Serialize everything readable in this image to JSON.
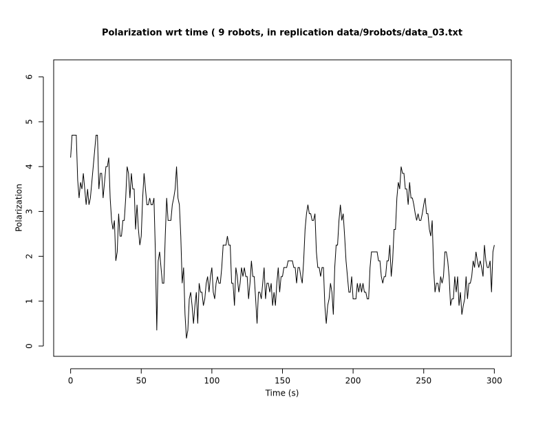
{
  "chart_data": {
    "type": "line",
    "title": "Polarization wrt time ( 9 robots, in replication  data/9robots/data_03.txt",
    "xlabel": "Time (s)",
    "ylabel": "Polarization",
    "color": "#000000",
    "xlim": [
      -12,
      312
    ],
    "ylim": [
      -0.23,
      6.38
    ],
    "xticks": [
      0,
      50,
      100,
      150,
      200,
      250,
      300
    ],
    "yticks": [
      0,
      1,
      2,
      3,
      4,
      5,
      6
    ],
    "x": [
      0,
      1,
      2,
      3,
      4,
      5,
      6,
      7,
      8,
      9,
      10,
      11,
      12,
      13,
      14,
      15,
      16,
      17,
      18,
      19,
      20,
      21,
      22,
      23,
      24,
      25,
      26,
      27,
      28,
      29,
      30,
      31,
      32,
      33,
      34,
      35,
      36,
      37,
      38,
      39,
      40,
      41,
      42,
      43,
      44,
      45,
      46,
      47,
      48,
      49,
      50,
      51,
      52,
      53,
      54,
      55,
      56,
      57,
      58,
      59,
      60,
      61,
      62,
      63,
      64,
      65,
      66,
      67,
      68,
      69,
      70,
      71,
      72,
      73,
      74,
      75,
      76,
      77,
      78,
      79,
      80,
      81,
      82,
      83,
      84,
      85,
      86,
      87,
      88,
      89,
      90,
      91,
      92,
      93,
      94,
      95,
      96,
      97,
      98,
      99,
      100,
      101,
      102,
      103,
      104,
      105,
      106,
      107,
      108,
      109,
      110,
      111,
      112,
      113,
      114,
      115,
      116,
      117,
      118,
      119,
      120,
      121,
      122,
      123,
      124,
      125,
      126,
      127,
      128,
      129,
      130,
      131,
      132,
      133,
      134,
      135,
      136,
      137,
      138,
      139,
      140,
      141,
      142,
      143,
      144,
      145,
      146,
      147,
      148,
      149,
      150,
      151,
      152,
      153,
      154,
      155,
      156,
      157,
      158,
      159,
      160,
      161,
      162,
      163,
      164,
      165,
      166,
      167,
      168,
      169,
      170,
      171,
      172,
      173,
      174,
      175,
      176,
      177,
      178,
      179,
      180,
      181,
      182,
      183,
      184,
      185,
      186,
      187,
      188,
      189,
      190,
      191,
      192,
      193,
      194,
      195,
      196,
      197,
      198,
      199,
      200,
      201,
      202,
      203,
      204,
      205,
      206,
      207,
      208,
      209,
      210,
      211,
      212,
      213,
      214,
      215,
      216,
      217,
      218,
      219,
      220,
      221,
      222,
      223,
      224,
      225,
      226,
      227,
      228,
      229,
      230,
      231,
      232,
      233,
      234,
      235,
      236,
      237,
      238,
      239,
      240,
      241,
      242,
      243,
      244,
      245,
      246,
      247,
      248,
      249,
      250,
      251,
      252,
      253,
      254,
      255,
      256,
      257,
      258,
      259,
      260,
      261,
      262,
      263,
      264,
      265,
      266,
      267,
      268,
      269,
      270,
      271,
      272,
      273,
      274,
      275,
      276,
      277,
      278,
      279,
      280,
      281,
      282,
      283,
      284,
      285,
      286,
      287,
      288,
      289,
      290,
      291,
      292,
      293,
      294,
      295,
      296,
      297,
      298,
      299,
      300
    ],
    "values": [
      4.2,
      4.7,
      4.7,
      4.7,
      4.7,
      3.7,
      3.3,
      3.65,
      3.5,
      3.85,
      3.5,
      3.15,
      3.5,
      3.15,
      3.3,
      3.65,
      4.0,
      4.35,
      4.7,
      4.7,
      3.5,
      3.85,
      3.85,
      3.3,
      3.65,
      4.0,
      4.0,
      4.2,
      3.3,
      2.8,
      2.6,
      2.8,
      1.9,
      2.1,
      2.95,
      2.45,
      2.45,
      2.8,
      2.8,
      3.3,
      4.0,
      3.85,
      3.3,
      3.85,
      3.5,
      3.5,
      2.6,
      3.15,
      2.6,
      2.25,
      2.45,
      3.3,
      3.85,
      3.5,
      3.15,
      3.15,
      3.3,
      3.15,
      3.15,
      3.3,
      2.1,
      0.35,
      1.9,
      2.1,
      1.75,
      1.4,
      1.4,
      2.45,
      3.3,
      2.8,
      2.8,
      2.8,
      3.15,
      3.3,
      3.5,
      4.0,
      3.3,
      3.15,
      2.45,
      1.4,
      1.75,
      0.7,
      0.17,
      0.35,
      1.05,
      1.2,
      0.9,
      0.5,
      0.9,
      1.2,
      0.5,
      1.4,
      1.2,
      1.2,
      0.9,
      1.05,
      1.4,
      1.55,
      1.2,
      1.55,
      1.75,
      1.2,
      1.05,
      1.4,
      1.55,
      1.4,
      1.4,
      1.75,
      2.25,
      2.25,
      2.25,
      2.45,
      2.25,
      2.25,
      1.4,
      1.4,
      0.9,
      1.75,
      1.55,
      1.2,
      1.4,
      1.75,
      1.55,
      1.75,
      1.55,
      1.55,
      1.05,
      1.4,
      1.9,
      1.55,
      1.55,
      1.05,
      0.5,
      1.2,
      1.2,
      1.05,
      1.4,
      1.75,
      1.05,
      1.4,
      1.4,
      1.2,
      1.4,
      0.9,
      1.2,
      0.9,
      1.4,
      1.75,
      1.2,
      1.55,
      1.55,
      1.75,
      1.75,
      1.75,
      1.9,
      1.9,
      1.9,
      1.9,
      1.75,
      1.75,
      1.4,
      1.75,
      1.75,
      1.55,
      1.4,
      1.9,
      2.6,
      2.95,
      3.15,
      2.95,
      2.95,
      2.8,
      2.8,
      2.95,
      2.1,
      1.75,
      1.75,
      1.55,
      1.75,
      1.75,
      0.9,
      0.5,
      0.9,
      1.05,
      1.4,
      1.2,
      0.7,
      1.75,
      2.25,
      2.25,
      2.8,
      3.15,
      2.8,
      2.95,
      2.45,
      1.9,
      1.55,
      1.2,
      1.2,
      1.55,
      1.05,
      1.05,
      1.05,
      1.4,
      1.2,
      1.4,
      1.2,
      1.4,
      1.2,
      1.2,
      1.05,
      1.05,
      1.75,
      2.1,
      2.1,
      2.1,
      2.1,
      2.1,
      1.9,
      1.9,
      1.55,
      1.4,
      1.55,
      1.55,
      1.9,
      1.9,
      2.25,
      1.55,
      1.9,
      2.6,
      2.6,
      3.3,
      3.65,
      3.5,
      4.0,
      3.85,
      3.85,
      3.5,
      3.5,
      3.15,
      3.65,
      3.3,
      3.3,
      3.15,
      2.95,
      2.8,
      2.95,
      2.8,
      2.8,
      2.95,
      3.15,
      3.3,
      2.95,
      2.95,
      2.6,
      2.45,
      2.8,
      1.75,
      1.2,
      1.4,
      1.4,
      1.2,
      1.55,
      1.4,
      1.55,
      2.1,
      2.1,
      1.9,
      1.55,
      0.9,
      1.05,
      1.05,
      1.55,
      1.2,
      1.55,
      0.9,
      1.2,
      0.7,
      0.9,
      1.05,
      1.55,
      1.05,
      1.4,
      1.4,
      1.55,
      1.9,
      1.75,
      2.1,
      1.9,
      1.75,
      1.9,
      1.75,
      1.55,
      2.25,
      1.9,
      1.75,
      1.75,
      1.9,
      1.2,
      2.1,
      2.25
    ]
  }
}
